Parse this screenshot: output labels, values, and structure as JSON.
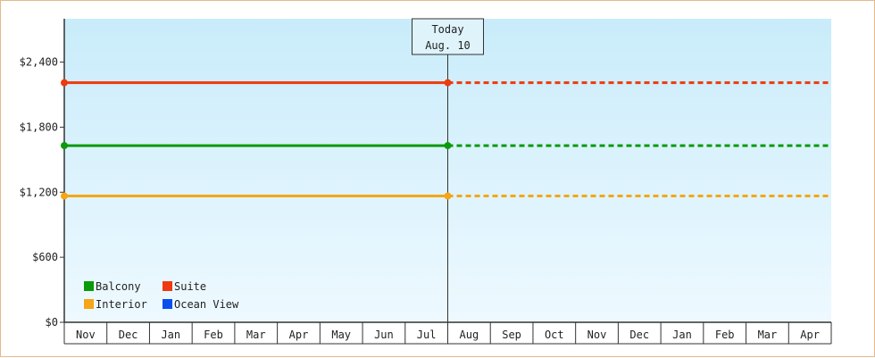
{
  "chart_data": {
    "type": "line",
    "title": "",
    "xlabel": "",
    "ylabel": "",
    "ylim": [
      0,
      2800
    ],
    "yticks": [
      0,
      600,
      1200,
      1800,
      2400
    ],
    "ytick_labels": [
      "$0",
      "$600",
      "$1,200",
      "$1,800",
      "$2,400"
    ],
    "categories": [
      "Nov",
      "Dec",
      "Jan",
      "Feb",
      "Mar",
      "Apr",
      "May",
      "Jun",
      "Jul",
      "Aug",
      "Sep",
      "Oct",
      "Nov",
      "Dec",
      "Jan",
      "Feb",
      "Mar",
      "Apr"
    ],
    "grid": false,
    "legend_position": "bottom-left",
    "today": {
      "line1": "Today",
      "line2": "Aug. 10",
      "month_index": 9
    },
    "series": [
      {
        "name": "Balcony",
        "color": "#0a9a0a",
        "start": 1630,
        "end": 1630,
        "style": "solid-until-today-then-dashed"
      },
      {
        "name": "Suite",
        "color": "#ee3a0e",
        "start": 2210,
        "end": 2210,
        "style": "solid-until-today-then-dashed"
      },
      {
        "name": "Interior",
        "color": "#f5a516",
        "start": 1165,
        "end": 1165,
        "style": "solid-until-today-then-dashed"
      },
      {
        "name": "Ocean View",
        "color": "#0a4ef0",
        "start": null,
        "end": null,
        "style": "none"
      }
    ],
    "legend": [
      {
        "name": "Balcony",
        "color": "#0a9a0a"
      },
      {
        "name": "Suite",
        "color": "#ee3a0e"
      },
      {
        "name": "Interior",
        "color": "#f5a516"
      },
      {
        "name": "Ocean View",
        "color": "#0a4ef0"
      }
    ],
    "plot_background_top": "#c9ecfa",
    "plot_background_bottom": "#eef9ff"
  }
}
